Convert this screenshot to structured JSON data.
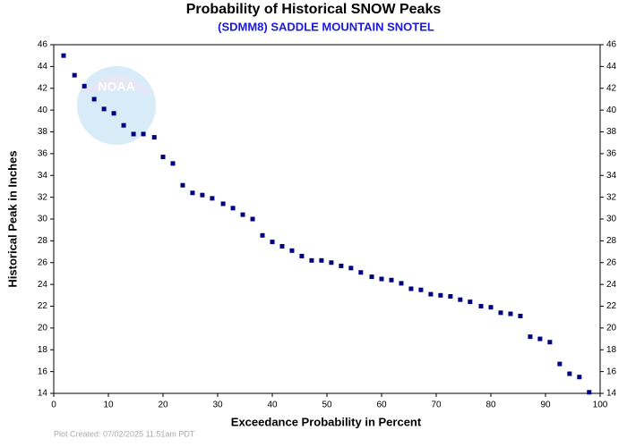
{
  "chart_data": {
    "type": "scatter",
    "title": "Probability of Historical SNOW Peaks",
    "subtitle": "(SDMM8) SADDLE MOUNTAIN SNOTEL",
    "x_label": "Exceedance Probability in Percent",
    "y_label": "Historical Peak in Inches",
    "footer": "Plot Created: 07/02/2025 11:51am PDT",
    "logo_text": "NOAA",
    "color": "#000080",
    "xlim": [
      0,
      100
    ],
    "ylim": [
      14,
      46
    ],
    "xticks": [
      0,
      10,
      20,
      30,
      40,
      50,
      60,
      70,
      80,
      90,
      100
    ],
    "yticks": [
      14,
      16,
      18,
      20,
      22,
      24,
      26,
      28,
      30,
      32,
      34,
      36,
      38,
      40,
      42,
      44,
      46
    ],
    "x": [
      1.8,
      3.8,
      5.6,
      7.4,
      9.2,
      11.0,
      12.8,
      14.6,
      16.4,
      18.4,
      20.0,
      21.8,
      23.6,
      25.4,
      27.2,
      29.0,
      31.0,
      32.8,
      34.6,
      36.4,
      38.2,
      40.0,
      41.8,
      43.6,
      45.4,
      47.2,
      49.0,
      50.8,
      52.6,
      54.4,
      56.2,
      58.2,
      60.0,
      61.8,
      63.6,
      65.4,
      67.2,
      69.0,
      70.8,
      72.6,
      74.4,
      76.2,
      78.2,
      80.0,
      81.8,
      83.6,
      85.4,
      87.2,
      89.0,
      90.8,
      92.6,
      94.4,
      96.2,
      98.0
    ],
    "values": [
      45.0,
      43.2,
      42.2,
      41.0,
      40.1,
      39.7,
      38.6,
      37.8,
      37.8,
      37.5,
      35.7,
      35.1,
      33.1,
      32.4,
      32.2,
      31.9,
      31.4,
      31.0,
      30.4,
      30.0,
      28.5,
      27.9,
      27.5,
      27.1,
      26.6,
      26.2,
      26.2,
      26.0,
      25.7,
      25.5,
      25.1,
      24.7,
      24.5,
      24.4,
      24.1,
      23.6,
      23.5,
      23.1,
      23.0,
      22.9,
      22.6,
      22.4,
      22.0,
      21.9,
      21.4,
      21.3,
      21.1,
      19.2,
      19.0,
      18.7,
      16.7,
      15.8,
      15.5,
      14.1
    ]
  }
}
